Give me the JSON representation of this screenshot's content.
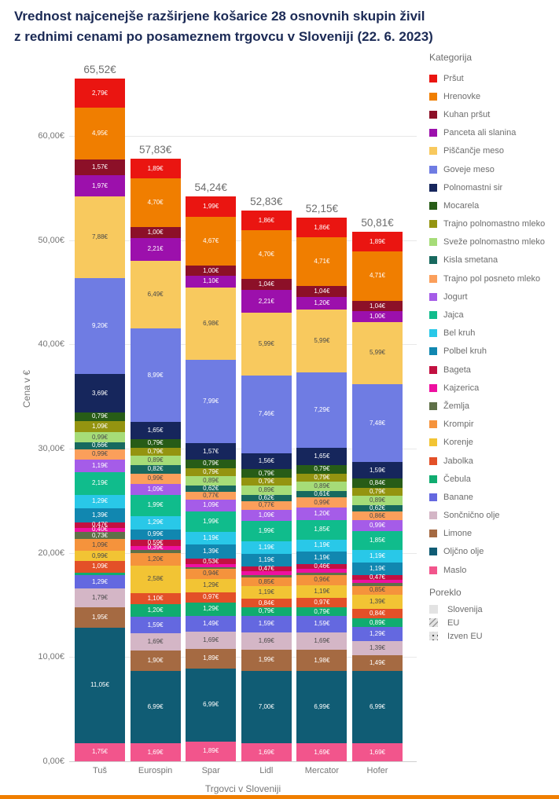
{
  "title_line1": "Vrednost najcenejše razširjene košarice 28 osnovnih skupin živil",
  "title_line2": "z rednimi cenami po posameznem trgovcu v Sloveniji (22. 6. 2023)",
  "legend": {
    "kategorija_title": "Kategorija",
    "poreklo_title": "Poreklo",
    "poreklo_items": [
      "Slovenija",
      "EU",
      "Izven EU"
    ]
  },
  "chart_data": {
    "type": "bar",
    "subtype": "stacked-vertical",
    "xlabel": "Trgovci v Sloveniji",
    "ylabel": "Cena v €",
    "ylim": [
      0,
      66
    ],
    "yticks": [
      "0,00€",
      "10,00€",
      "20,00€",
      "30,00€",
      "40,00€",
      "50,00€",
      "60,00€"
    ],
    "grid": true,
    "legend_position": "right",
    "categories": [
      "Tuš",
      "Eurospin",
      "Spar",
      "Lidl",
      "Mercator",
      "Hofer"
    ],
    "totals": [
      "65,52€",
      "57,83€",
      "54,24€",
      "52,83€",
      "52,15€",
      "50,81€"
    ],
    "origin_patterns": {
      "solid": "Slovenija",
      "hatch": "EU",
      "dots": "Izven EU"
    },
    "series": [
      {
        "name": "Pršut",
        "color": "#ea1511",
        "values": [
          2.79,
          1.89,
          1.99,
          1.86,
          1.86,
          1.89
        ],
        "patterns": [
          "hatch",
          "hatch",
          "hatch",
          "hatch",
          "hatch",
          "solid"
        ]
      },
      {
        "name": "Hrenovke",
        "color": "#f07e00",
        "values": [
          4.95,
          4.7,
          4.67,
          4.7,
          4.71,
          4.71
        ],
        "patterns": [
          "solid",
          "solid",
          "solid",
          "hatch",
          "hatch",
          "hatch"
        ]
      },
      {
        "name": "Kuhan pršut",
        "color": "#8c1028",
        "values": [
          1.57,
          1.0,
          1.0,
          1.04,
          1.04,
          1.04
        ],
        "patterns": [
          "vstripe",
          "hatch",
          "hatch",
          "solid",
          "hatch",
          "solid"
        ]
      },
      {
        "name": "Panceta ali slanina",
        "color": "#9c10ac",
        "values": [
          1.97,
          2.21,
          1.1,
          2.21,
          1.2,
          1.0
        ],
        "patterns": [
          "solid",
          "vstripe",
          "solid",
          "vstripe",
          "solid",
          "solid"
        ]
      },
      {
        "name": "Piščančje meso",
        "color": "#f8c95e",
        "values": [
          7.88,
          6.49,
          6.98,
          5.99,
          5.99,
          5.99
        ],
        "patterns": [
          "hatch",
          "dots",
          "solid",
          "hatch",
          "solid",
          "vstripe"
        ]
      },
      {
        "name": "Goveje meso",
        "color": "#6f7ce3",
        "values": [
          9.2,
          8.99,
          7.99,
          7.46,
          7.29,
          7.48
        ],
        "patterns": [
          "solid",
          "solid",
          "solid",
          "solid",
          "solid",
          "solid"
        ]
      },
      {
        "name": "Polnomastni sir",
        "color": "#16265c",
        "values": [
          3.69,
          1.65,
          1.57,
          1.56,
          1.65,
          1.59
        ],
        "patterns": [
          "dots",
          "hatch",
          "hatch",
          "hatch",
          "hatch",
          "dots"
        ]
      },
      {
        "name": "Mocarela",
        "color": "#275c17",
        "values": [
          0.79,
          0.79,
          0.79,
          0.79,
          0.79,
          0.84
        ],
        "patterns": [
          "solid",
          "dots",
          "dots",
          "hatch",
          "hatch",
          "solid"
        ]
      },
      {
        "name": "Trajno polnomastno mleko",
        "color": "#949410",
        "values": [
          1.09,
          0.79,
          0.79,
          0.79,
          0.79,
          0.79
        ],
        "patterns": [
          "solid",
          "solid",
          "hatch",
          "hatch",
          "solid",
          "hatch"
        ]
      },
      {
        "name": "Sveže polnomastno mleko",
        "color": "#a6dc78",
        "values": [
          0.99,
          0.89,
          0.89,
          0.89,
          0.89,
          0.89
        ],
        "patterns": [
          "solid",
          "hatch",
          "solid",
          "solid",
          "solid",
          "hatch"
        ]
      },
      {
        "name": "Kisla smetana",
        "color": "#18695f",
        "values": [
          0.66,
          0.82,
          0.62,
          0.62,
          0.61,
          0.62
        ],
        "patterns": [
          "solid",
          "dots",
          "solid",
          "dots",
          "hatch",
          "dots"
        ]
      },
      {
        "name": "Trajno pol posneto mleko",
        "color": "#fb9f5b",
        "values": [
          0.99,
          0.99,
          0.77,
          0.77,
          0.99,
          0.86
        ],
        "patterns": [
          "solid",
          "hatch",
          "dots",
          "dots",
          "hatch",
          "dots"
        ]
      },
      {
        "name": "Jogurt",
        "color": "#a55ce8",
        "values": [
          1.19,
          1.09,
          1.09,
          1.09,
          1.2,
          0.99
        ],
        "patterns": [
          "solid",
          "solid",
          "solid",
          "solid",
          "solid",
          "solid"
        ]
      },
      {
        "name": "Jajca",
        "color": "#10bc8c",
        "values": [
          2.19,
          1.99,
          1.99,
          1.99,
          1.85,
          1.85
        ],
        "patterns": [
          "solid",
          "dots",
          "solid",
          "solid",
          "solid",
          "dots"
        ]
      },
      {
        "name": "Bel kruh",
        "color": "#29c8e8",
        "values": [
          1.29,
          1.29,
          1.19,
          1.19,
          1.19,
          1.19
        ],
        "patterns": [
          "solid",
          "solid",
          "solid",
          "solid",
          "solid",
          "solid"
        ]
      },
      {
        "name": "Polbel kruh",
        "color": "#1187b0",
        "values": [
          1.39,
          0.99,
          1.39,
          1.19,
          1.19,
          1.19
        ],
        "patterns": [
          "solid",
          "solid",
          "solid",
          "solid",
          "solid",
          "solid"
        ]
      },
      {
        "name": "Bageta",
        "color": "#c21041",
        "values": [
          0.47,
          0.59,
          0.53,
          0.47,
          0.46,
          0.47
        ],
        "patterns": [
          "solid",
          "hatch",
          "solid",
          "solid",
          "hatch",
          "hatch"
        ]
      },
      {
        "name": "Kajzerica",
        "color": "#ee10a0",
        "values": [
          0.4,
          0.39,
          0.25,
          0.35,
          0.35,
          0.35
        ],
        "patterns": [
          "solid",
          "solid",
          "solid",
          "solid",
          "solid",
          "solid"
        ]
      },
      {
        "name": "Žemlja",
        "color": "#5f7048",
        "values": [
          0.73,
          0.34,
          0.2,
          0.24,
          0.25,
          0.25
        ],
        "patterns": [
          "solid",
          "solid",
          "solid",
          "solid",
          "solid",
          "solid"
        ]
      },
      {
        "name": "Krompir",
        "color": "#f5933c",
        "values": [
          1.09,
          1.2,
          0.94,
          0.85,
          0.96,
          0.85
        ],
        "patterns": [
          "solid",
          "dots",
          "solid",
          "solid",
          "solid",
          "dots"
        ]
      },
      {
        "name": "Korenje",
        "color": "#f2c434",
        "values": [
          0.99,
          2.58,
          1.29,
          1.19,
          1.19,
          1.39
        ],
        "patterns": [
          "hatch",
          "hatch",
          "dots",
          "solid",
          "hatch",
          "hatch"
        ]
      },
      {
        "name": "Jabolka",
        "color": "#e35028",
        "values": [
          1.09,
          1.1,
          0.97,
          0.84,
          0.97,
          0.84
        ],
        "patterns": [
          "solid",
          "vstripe",
          "solid",
          "hatch",
          "solid",
          "solid"
        ]
      },
      {
        "name": "Čebula",
        "color": "#10ac70",
        "values": [
          0.29,
          1.2,
          1.29,
          0.79,
          0.79,
          0.89
        ],
        "patterns": [
          "hatch",
          "solid",
          "dots",
          "solid",
          "hatch",
          "hatch"
        ]
      },
      {
        "name": "Banane",
        "color": "#6468e0",
        "values": [
          1.29,
          1.59,
          1.49,
          1.59,
          1.59,
          1.29
        ],
        "patterns": [
          "dots",
          "dots",
          "dots",
          "dots",
          "dots",
          "dots"
        ]
      },
      {
        "name": "Sončnično olje",
        "color": "#d4b6c6",
        "values": [
          1.79,
          1.69,
          1.69,
          1.69,
          1.69,
          1.39
        ],
        "patterns": [
          "dots",
          "dots",
          "hatch",
          "hatch",
          "dots",
          "dots"
        ]
      },
      {
        "name": "Limone",
        "color": "#a56a42",
        "values": [
          1.95,
          1.9,
          1.89,
          1.99,
          1.98,
          1.49
        ],
        "patterns": [
          "dots",
          "hatch",
          "dots",
          "hatch",
          "solid",
          "hatch"
        ]
      },
      {
        "name": "Oljčno olje",
        "color": "#105c74",
        "values": [
          11.05,
          6.99,
          6.99,
          7.0,
          6.99,
          6.99
        ],
        "patterns": [
          "solid",
          "dots",
          "dots",
          "hatch",
          "hatch",
          "dots"
        ]
      },
      {
        "name": "Maslo",
        "color": "#f2558c",
        "values": [
          1.75,
          1.69,
          1.89,
          1.69,
          1.69,
          1.69
        ],
        "patterns": [
          "hatch",
          "dots",
          "hatch",
          "solid",
          "dots",
          "hatch"
        ]
      }
    ]
  }
}
